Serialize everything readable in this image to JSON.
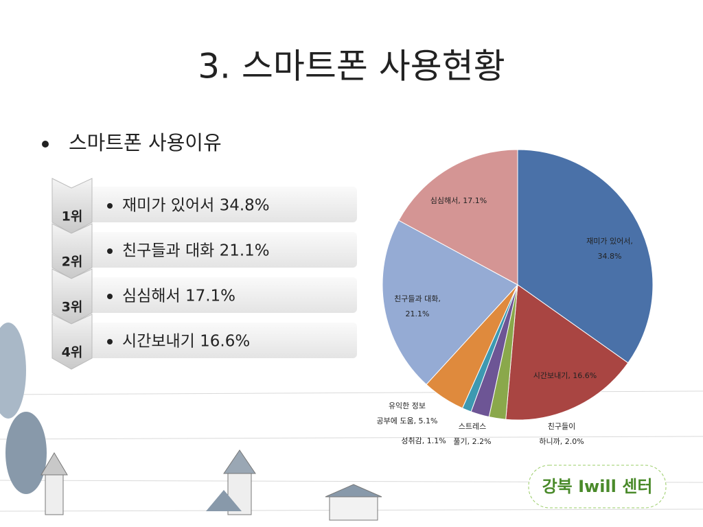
{
  "slide": {
    "title": "3. 스마트폰 사용현황",
    "subtitle": "스마트폰 사용이유",
    "ranks": [
      {
        "rank": "1위",
        "text": "재미가 있어서 34.8%"
      },
      {
        "rank": "2위",
        "text": "친구들과 대화 21.1%"
      },
      {
        "rank": "3위",
        "text": "심심해서 17.1%"
      },
      {
        "rank": "4위",
        "text": "시간보내기 16.6%"
      }
    ],
    "logo": "강북 Iwill 센터"
  },
  "chart_data": {
    "type": "pie",
    "values": [
      34.8,
      16.6,
      2.0,
      2.2,
      1.1,
      5.1,
      21.1,
      17.1
    ],
    "value_labels": [
      "재미가 있어서,\n34.8%",
      "시간보내기, 16.6%",
      "친구들이\n하니까, 2.0%",
      "스트레스\n풀기, 2.2%",
      "성취감, 1.1%",
      "유익한 정보\n공부에 도움, 5.1%",
      "친구들과 대화,\n21.1%",
      "심심해서, 17.1%"
    ],
    "colors": [
      "#4a71a8",
      "#a94542",
      "#8aa84b",
      "#6d5595",
      "#3d99b1",
      "#df8a3d",
      "#95abd4",
      "#d49594"
    ]
  }
}
